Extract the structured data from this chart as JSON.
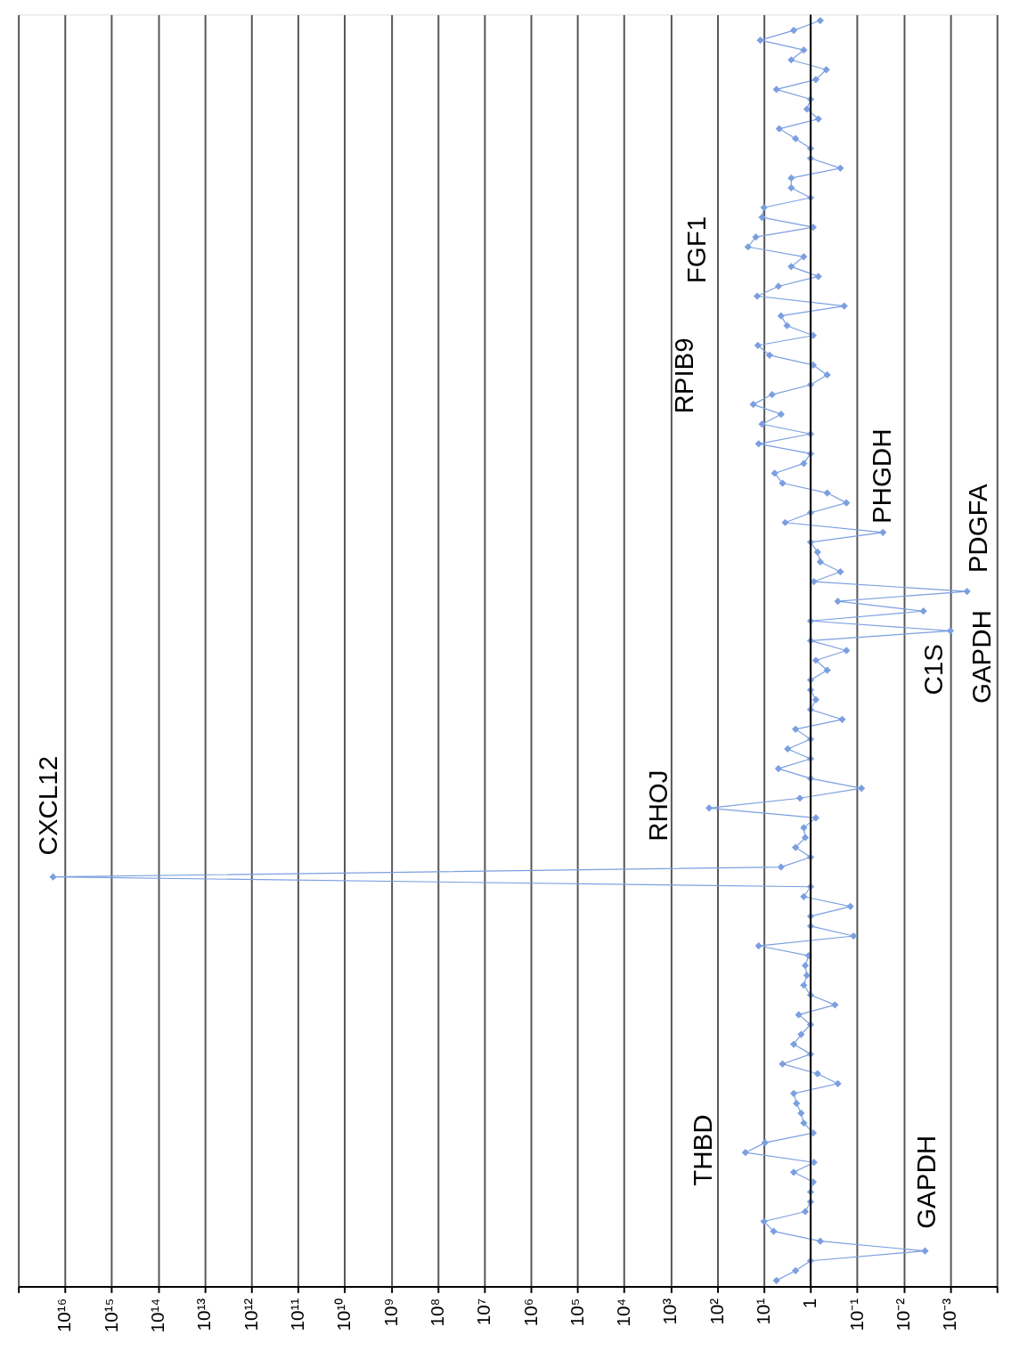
{
  "chart_data": {
    "type": "line",
    "orientation": "horizontal",
    "log": "x",
    "marker": "diamond",
    "grid": "x",
    "tick_labels": "x",
    "ref_lines": [
      {
        "axis": "x",
        "value": 1,
        "color": "#000000"
      }
    ],
    "categories": [
      null,
      null,
      null,
      null,
      null,
      null,
      null,
      null,
      null,
      null,
      null,
      null,
      null,
      null,
      null,
      null,
      null,
      null,
      null,
      null,
      null,
      null,
      null,
      null,
      null,
      null,
      null,
      null,
      null,
      null,
      null,
      null,
      null,
      null,
      null,
      null,
      null,
      null,
      null,
      null,
      null,
      null,
      null,
      null,
      null,
      null,
      null,
      null,
      null,
      null,
      null,
      null,
      null,
      null,
      null,
      null,
      null,
      null,
      null,
      null,
      null,
      null,
      null,
      null,
      null,
      null,
      null,
      null,
      null,
      null,
      null,
      null,
      null,
      null,
      null,
      null,
      null,
      null,
      null,
      null,
      null,
      null,
      null,
      null,
      null,
      null,
      null,
      null,
      null,
      null,
      null,
      null,
      null,
      null,
      null,
      null,
      null,
      null,
      null,
      null,
      null,
      null,
      null,
      null,
      null,
      null,
      null,
      null,
      null,
      null,
      null,
      null,
      null,
      null,
      null,
      null,
      null,
      null,
      null,
      null,
      null,
      null,
      null,
      null,
      null,
      null,
      null,
      null,
      null
    ],
    "series": [
      {
        "color": "#7b9fe0",
        "values": [
          0.62,
          2.3,
          12,
          1.4,
          2.6,
          0.46,
          0.77,
          5.4,
          1,
          1.2,
          0.68,
          4.7,
          2.1,
          1,
          1,
          0.23,
          2.6,
          2.6,
          1,
          10,
          11,
          0.88,
          15,
          22,
          1.4,
          2.6,
          0.68,
          4.9,
          14,
          0.19,
          4.3,
          3.2,
          0.88,
          13.5,
          7.6,
          0.88,
          0.44,
          1,
          6.7,
          17,
          4.3,
          11,
          1,
          13,
          1,
          1.4,
          5.9,
          4,
          0.44,
          0.17,
          1,
          3.5,
          0.028,
          1,
          0.71,
          0.62,
          0.23,
          0.85,
          0.00044,
          0.26,
          0.0038,
          1,
          0.001,
          1,
          0.17,
          0.77,
          0.44,
          1,
          1,
          0.77,
          1,
          0.21,
          2.1,
          1,
          3.1,
          1,
          4.9,
          1,
          0.081,
          1.7,
          150,
          0.77,
          1.4,
          1.3,
          2.1,
          1,
          4.3,
          1.8e+16,
          1,
          1.4,
          0.14,
          1,
          1,
          0.12,
          13,
          1.1,
          1.3,
          1.2,
          1.4,
          1,
          0.3,
          1.8,
          1,
          1.6,
          2.3,
          1,
          4,
          0.71,
          0.26,
          2.3,
          2,
          1.6,
          1.4,
          0.88,
          9.5,
          25,
          0.85,
          2.3,
          0.88,
          1,
          1,
          1.3,
          10,
          6.2,
          0.62,
          0.0035,
          1,
          2.1,
          5.4
        ]
      }
    ],
    "xlim": [
      1e+17,
      0.0001
    ],
    "xticks": [
      {
        "value": 1e+17,
        "label": null
      },
      {
        "value": 1e+16,
        "label": "10¹⁶"
      },
      {
        "value": 1000000000000000.0,
        "label": "10¹⁵"
      },
      {
        "value": 100000000000000.0,
        "label": "10¹⁴"
      },
      {
        "value": 10000000000000.0,
        "label": "10¹³"
      },
      {
        "value": 1000000000000.0,
        "label": "10¹²"
      },
      {
        "value": 100000000000.0,
        "label": "10¹¹"
      },
      {
        "value": 10000000000.0,
        "label": "10¹⁰"
      },
      {
        "value": 1000000000.0,
        "label": "10⁹"
      },
      {
        "value": 100000000.0,
        "label": "10⁸"
      },
      {
        "value": 10000000.0,
        "label": "10⁷"
      },
      {
        "value": 1000000.0,
        "label": "10⁶"
      },
      {
        "value": 100000.0,
        "label": "10⁵"
      },
      {
        "value": 10000.0,
        "label": "10⁴"
      },
      {
        "value": 1000.0,
        "label": "10³"
      },
      {
        "value": 100,
        "label": "10²"
      },
      {
        "value": 10,
        "label": "10¹"
      },
      1,
      {
        "value": 0.1,
        "label": "10⁻¹"
      },
      {
        "value": 0.01,
        "label": "10⁻²"
      },
      {
        "value": 0.001,
        "label": "10⁻³"
      },
      {
        "value": 0.0001,
        "label": null
      }
    ],
    "annotations": [
      "FGF1",
      "RPIB9",
      "PHGDH",
      "PDGFA",
      "GAPDH",
      "C1S",
      "CXCL12",
      "RHOJ",
      "THBD",
      "GAPDH"
    ]
  }
}
